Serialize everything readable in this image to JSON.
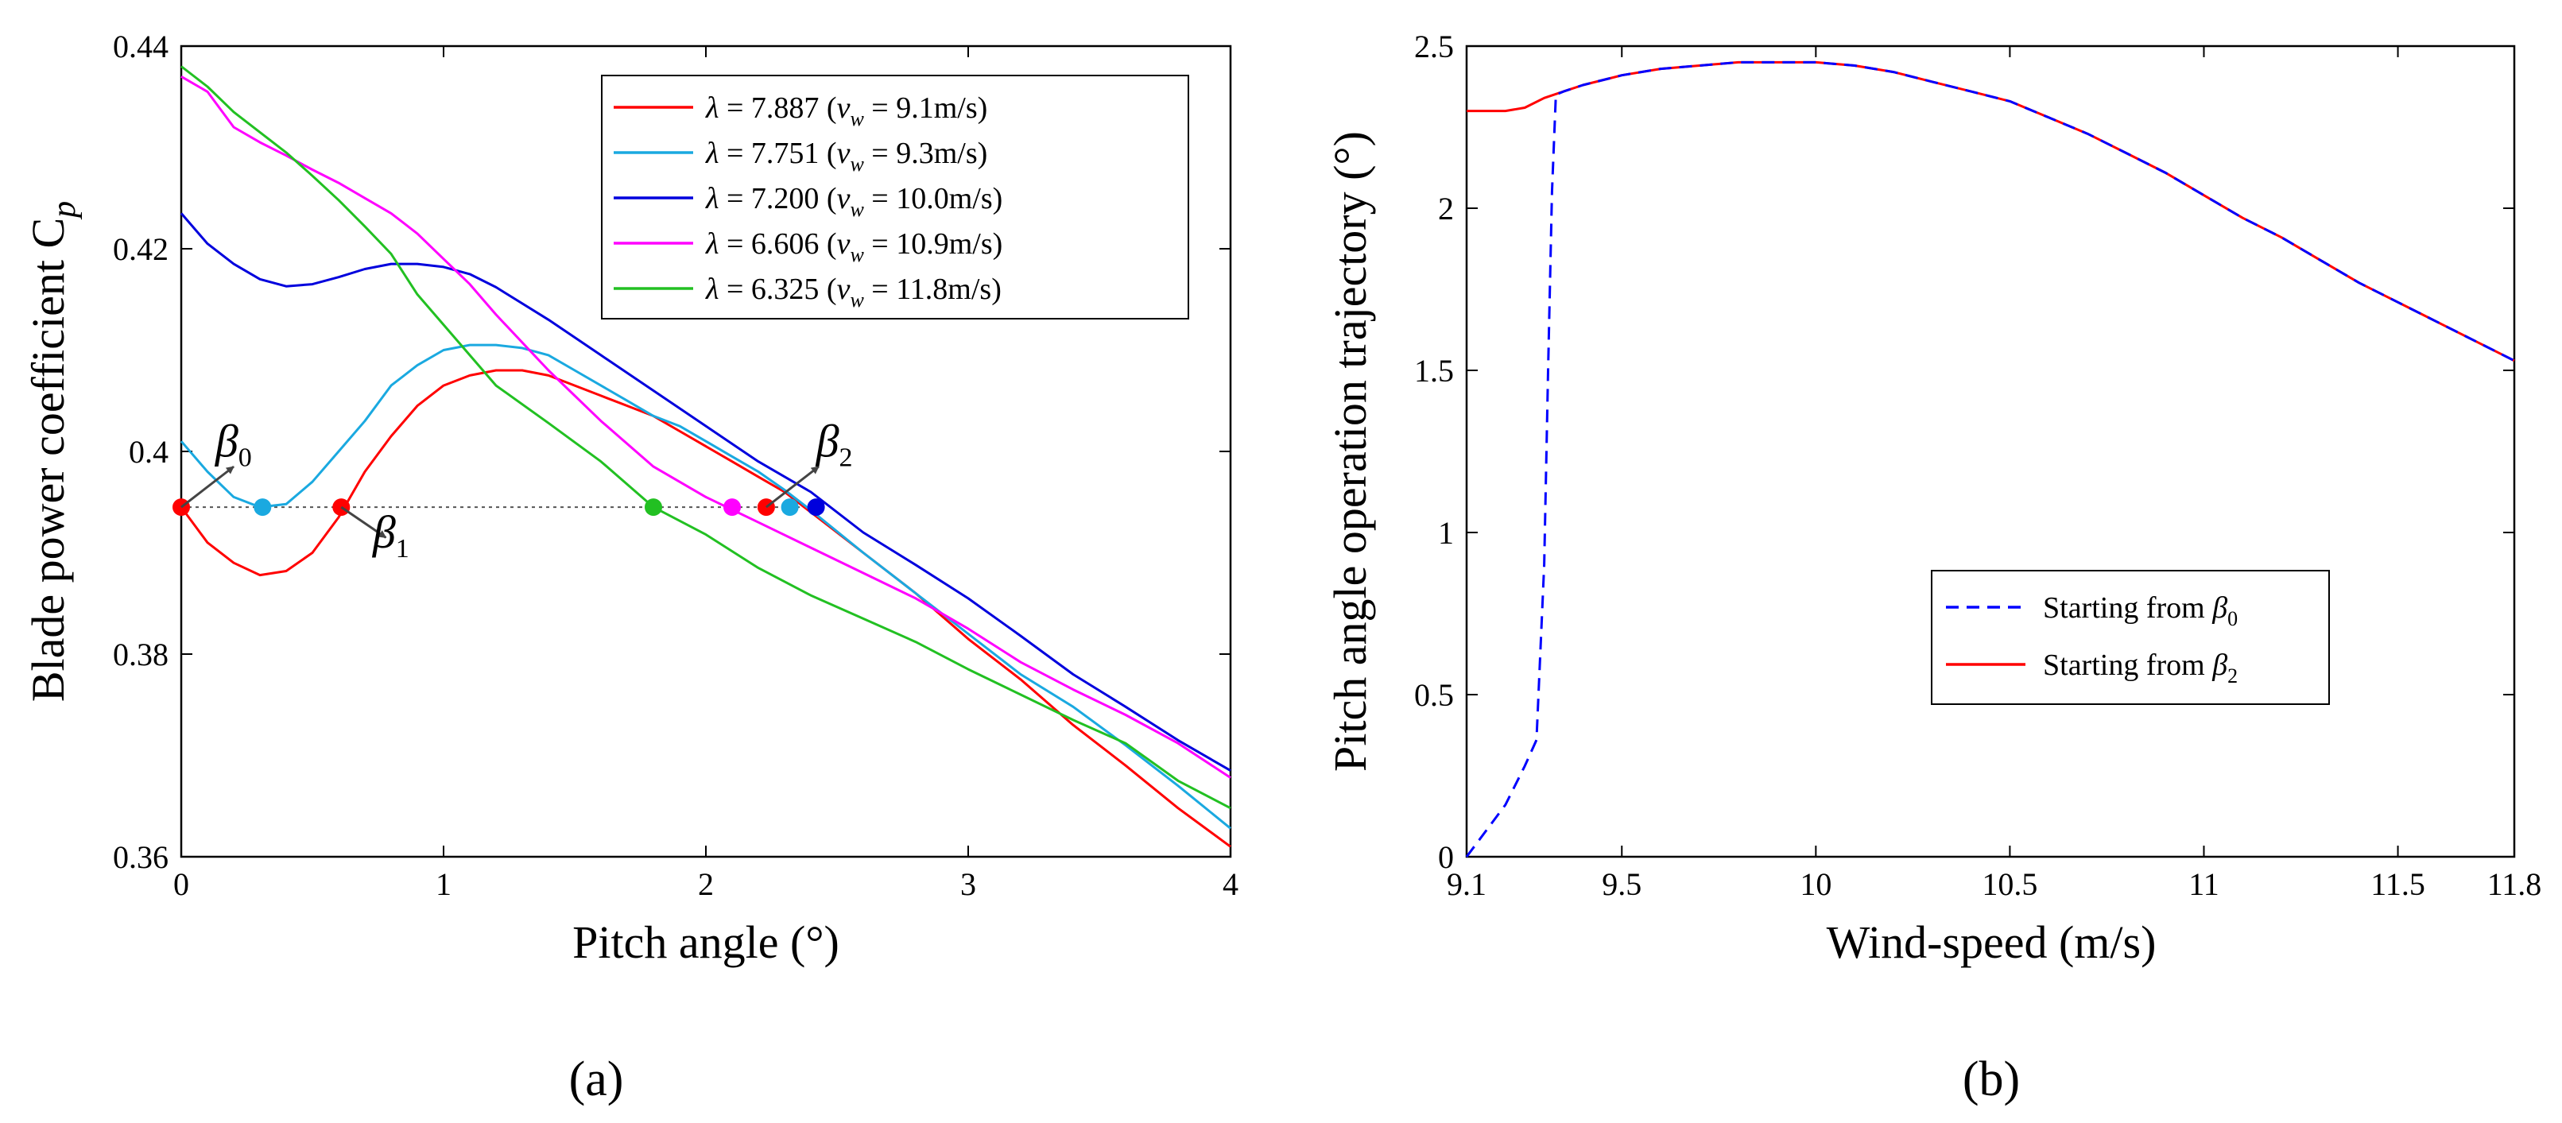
{
  "chart_data": [
    {
      "type": "line",
      "panel_label": "(a)",
      "xlabel": "Pitch angle (°)",
      "ylabel": "Blade power coefficient C",
      "ylabel_sub": "p",
      "xlim": [
        0,
        4
      ],
      "ylim": [
        0.36,
        0.44
      ],
      "xticks": [
        0,
        1,
        2,
        3,
        4
      ],
      "xtick_labels": [
        "0",
        "1",
        "2",
        "3",
        "4"
      ],
      "yticks": [
        0.36,
        0.38,
        0.4,
        0.42,
        0.44
      ],
      "ytick_labels": [
        "0.36",
        "0.38",
        "0.4",
        "0.42",
        "0.44"
      ],
      "grid": false,
      "legend_position": "top-right",
      "reference_line": {
        "y": 0.3945,
        "x": [
          0,
          2.42
        ],
        "style": "dotted"
      },
      "series": [
        {
          "name": "λ = 7.887 (vw = 9.1m/s)",
          "lambda": "7.887",
          "vw": "9.1m/s",
          "color": "#ff0000",
          "x": [
            0,
            0.1,
            0.2,
            0.3,
            0.4,
            0.5,
            0.6,
            0.7,
            0.8,
            0.9,
            1.0,
            1.1,
            1.2,
            1.3,
            1.4,
            1.5,
            1.6,
            1.7,
            1.8,
            1.9,
            2.0,
            2.1,
            2.2,
            2.3,
            2.4,
            2.6,
            2.8,
            3.0,
            3.2,
            3.4,
            3.6,
            3.8,
            4.0
          ],
          "y": [
            0.3945,
            0.391,
            0.389,
            0.3878,
            0.3882,
            0.39,
            0.3935,
            0.398,
            0.4015,
            0.4045,
            0.4065,
            0.4075,
            0.408,
            0.408,
            0.4075,
            0.4065,
            0.4055,
            0.4045,
            0.4035,
            0.402,
            0.4005,
            0.399,
            0.3975,
            0.396,
            0.394,
            0.39,
            0.386,
            0.3815,
            0.3775,
            0.373,
            0.369,
            0.3648,
            0.361
          ]
        },
        {
          "name": "λ = 7.751 (vw = 9.3m/s)",
          "lambda": "7.751",
          "vw": "9.3m/s",
          "color": "#1aa9e0",
          "x": [
            0,
            0.1,
            0.2,
            0.3,
            0.4,
            0.5,
            0.6,
            0.7,
            0.8,
            0.9,
            1.0,
            1.1,
            1.2,
            1.3,
            1.4,
            1.5,
            1.6,
            1.7,
            1.8,
            1.9,
            2.0,
            2.1,
            2.2,
            2.3,
            2.4,
            2.6,
            2.8,
            3.0,
            3.2,
            3.4,
            3.6,
            3.8,
            4.0
          ],
          "y": [
            0.401,
            0.398,
            0.3955,
            0.3945,
            0.3948,
            0.397,
            0.4,
            0.403,
            0.4065,
            0.4085,
            0.41,
            0.4105,
            0.4105,
            0.4102,
            0.4095,
            0.408,
            0.4065,
            0.405,
            0.4035,
            0.4025,
            0.401,
            0.3995,
            0.398,
            0.3962,
            0.3942,
            0.39,
            0.386,
            0.382,
            0.378,
            0.3748,
            0.371,
            0.367,
            0.3628
          ]
        },
        {
          "name": "λ = 7.200 (vw = 10.0m/s)",
          "lambda": "7.200",
          "vw": "10.0m/s",
          "color": "#0000dd",
          "x": [
            0,
            0.1,
            0.2,
            0.3,
            0.4,
            0.5,
            0.6,
            0.7,
            0.8,
            0.9,
            1.0,
            1.1,
            1.2,
            1.4,
            1.6,
            1.8,
            2.0,
            2.2,
            2.4,
            2.6,
            2.8,
            3.0,
            3.2,
            3.4,
            3.6,
            3.8,
            4.0
          ],
          "y": [
            0.4235,
            0.4205,
            0.4185,
            0.417,
            0.4163,
            0.4165,
            0.4172,
            0.418,
            0.4185,
            0.4185,
            0.4182,
            0.4175,
            0.4162,
            0.413,
            0.4095,
            0.406,
            0.4025,
            0.399,
            0.396,
            0.392,
            0.3888,
            0.3855,
            0.3818,
            0.378,
            0.3748,
            0.3715,
            0.3685
          ]
        },
        {
          "name": "λ = 6.606 (vw = 10.9m/s)",
          "lambda": "6.606",
          "vw": "10.9m/s",
          "color": "#ff00ff",
          "x": [
            0,
            0.1,
            0.2,
            0.3,
            0.4,
            0.5,
            0.6,
            0.7,
            0.8,
            0.9,
            1.0,
            1.1,
            1.2,
            1.4,
            1.6,
            1.8,
            2.0,
            2.2,
            2.4,
            2.6,
            2.8,
            3.0,
            3.2,
            3.4,
            3.6,
            3.8,
            4.0
          ],
          "y": [
            0.437,
            0.4355,
            0.432,
            0.4305,
            0.4292,
            0.4278,
            0.4265,
            0.425,
            0.4235,
            0.4215,
            0.419,
            0.4165,
            0.4135,
            0.408,
            0.403,
            0.3985,
            0.3955,
            0.393,
            0.3905,
            0.388,
            0.3855,
            0.3825,
            0.3792,
            0.3765,
            0.374,
            0.3712,
            0.3678
          ]
        },
        {
          "name": "λ = 6.325 (vw = 11.8m/s)",
          "lambda": "6.325",
          "vw": "11.8m/s",
          "color": "#22c022",
          "x": [
            0,
            0.1,
            0.2,
            0.3,
            0.4,
            0.5,
            0.6,
            0.7,
            0.8,
            0.9,
            1.0,
            1.1,
            1.2,
            1.4,
            1.6,
            1.8,
            2.0,
            2.2,
            2.4,
            2.6,
            2.8,
            3.0,
            3.2,
            3.4,
            3.6,
            3.8,
            4.0
          ],
          "y": [
            0.438,
            0.436,
            0.4335,
            0.4315,
            0.4295,
            0.4272,
            0.4248,
            0.4222,
            0.4195,
            0.4155,
            0.4125,
            0.4095,
            0.4065,
            0.4028,
            0.399,
            0.3945,
            0.3918,
            0.3885,
            0.3858,
            0.3835,
            0.3812,
            0.3785,
            0.376,
            0.3735,
            0.3712,
            0.3675,
            0.3648
          ]
        }
      ],
      "markers": [
        {
          "x": 0.0,
          "y": 0.3945,
          "color": "#ff0000"
        },
        {
          "x": 0.31,
          "y": 0.3945,
          "color": "#1aa9e0"
        },
        {
          "x": 0.61,
          "y": 0.3945,
          "color": "#ff0000"
        },
        {
          "x": 1.8,
          "y": 0.3945,
          "color": "#22c022"
        },
        {
          "x": 2.1,
          "y": 0.3945,
          "color": "#ff00ff"
        },
        {
          "x": 2.23,
          "y": 0.3945,
          "color": "#ff0000"
        },
        {
          "x": 2.32,
          "y": 0.3945,
          "color": "#1aa9e0"
        },
        {
          "x": 2.42,
          "y": 0.3945,
          "color": "#0000dd"
        }
      ],
      "annotations": [
        {
          "symbol": "β",
          "sub": "0",
          "from": [
            0.0,
            0.3945
          ],
          "to": [
            0.2,
            0.3985
          ],
          "label_at": [
            0.13,
            0.3995
          ]
        },
        {
          "symbol": "β",
          "sub": "1",
          "from": [
            0.61,
            0.3945
          ],
          "to": [
            0.78,
            0.3915
          ],
          "label_at": [
            0.73,
            0.3905
          ]
        },
        {
          "symbol": "β",
          "sub": "2",
          "from": [
            2.23,
            0.3945
          ],
          "to": [
            2.43,
            0.3985
          ],
          "label_at": [
            2.42,
            0.3995
          ]
        }
      ]
    },
    {
      "type": "line",
      "panel_label": "(b)",
      "xlabel": "Wind-speed (m/s)",
      "ylabel": "Pitch angle operation trajectory (°)",
      "xlim": [
        9.1,
        11.8
      ],
      "ylim": [
        0,
        2.5
      ],
      "xticks": [
        9.1,
        9.5,
        10,
        10.5,
        11,
        11.5,
        11.8
      ],
      "xtick_labels": [
        "9.1",
        "9.5",
        "10",
        "10.5",
        "11",
        "11.5",
        "11.8"
      ],
      "yticks": [
        0,
        0.5,
        1,
        1.5,
        2,
        2.5
      ],
      "ytick_labels": [
        "0",
        "0.5",
        "1",
        "1.5",
        "2",
        "2.5"
      ],
      "grid": false,
      "legend_position": "lower-center",
      "series": [
        {
          "name": "Starting from β0",
          "label_text": "Starting from ",
          "symbol": "β",
          "sub": "0",
          "color": "#0000ff",
          "style": "dashed",
          "x": [
            9.1,
            9.15,
            9.2,
            9.25,
            9.28,
            9.3,
            9.31,
            9.32,
            9.33,
            9.35,
            9.4,
            9.5,
            9.6,
            9.7,
            9.8,
            9.9,
            10.0,
            10.1,
            10.2,
            10.3,
            10.4,
            10.5,
            10.6,
            10.7,
            10.8,
            10.9,
            11.0,
            11.1,
            11.2,
            11.3,
            11.4,
            11.5,
            11.6,
            11.7,
            11.8
          ],
          "y": [
            0,
            0.08,
            0.16,
            0.28,
            0.36,
            0.9,
            1.5,
            2.05,
            2.35,
            2.36,
            2.38,
            2.41,
            2.43,
            2.44,
            2.45,
            2.45,
            2.45,
            2.44,
            2.42,
            2.39,
            2.36,
            2.33,
            2.28,
            2.23,
            2.17,
            2.11,
            2.04,
            1.97,
            1.91,
            1.84,
            1.77,
            1.71,
            1.65,
            1.59,
            1.53
          ]
        },
        {
          "name": "Starting from β2",
          "label_text": "Starting from ",
          "symbol": "β",
          "sub": "2",
          "color": "#ff0000",
          "style": "solid",
          "x": [
            9.1,
            9.15,
            9.2,
            9.25,
            9.3,
            9.35,
            9.4,
            9.5,
            9.6,
            9.7,
            9.8,
            9.9,
            10.0,
            10.1,
            10.2,
            10.3,
            10.4,
            10.5,
            10.6,
            10.7,
            10.8,
            10.9,
            11.0,
            11.1,
            11.2,
            11.3,
            11.4,
            11.5,
            11.6,
            11.7,
            11.8
          ],
          "y": [
            2.3,
            2.3,
            2.3,
            2.31,
            2.34,
            2.36,
            2.38,
            2.41,
            2.43,
            2.44,
            2.45,
            2.45,
            2.45,
            2.44,
            2.42,
            2.39,
            2.36,
            2.33,
            2.28,
            2.23,
            2.17,
            2.11,
            2.04,
            1.97,
            1.91,
            1.84,
            1.77,
            1.71,
            1.65,
            1.59,
            1.53
          ]
        }
      ]
    }
  ]
}
